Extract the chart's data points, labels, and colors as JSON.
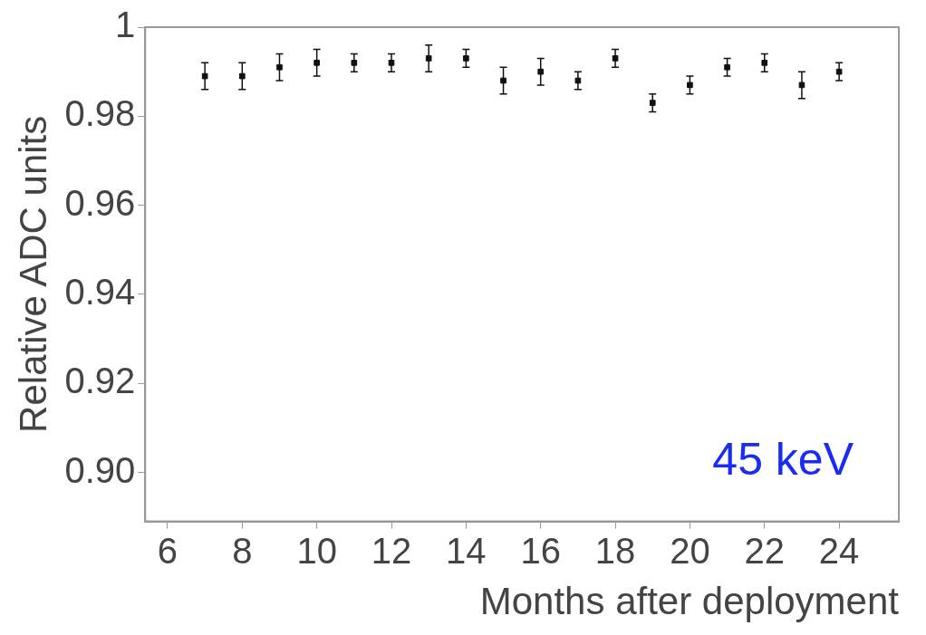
{
  "chart_data": {
    "type": "scatter",
    "xlabel": "Months after deployment",
    "ylabel": "Relative ADC units",
    "annotations": [
      "45 keV"
    ],
    "x": [
      7,
      8,
      9,
      10,
      11,
      12,
      13,
      14,
      15,
      16,
      17,
      18,
      19,
      20,
      21,
      22,
      23,
      24
    ],
    "values": [
      0.989,
      0.989,
      0.991,
      0.992,
      0.992,
      0.992,
      0.993,
      0.993,
      0.988,
      0.99,
      0.988,
      0.993,
      0.983,
      0.987,
      0.991,
      0.992,
      0.987,
      0.99
    ],
    "errors": [
      0.003,
      0.003,
      0.003,
      0.003,
      0.002,
      0.002,
      0.003,
      0.002,
      0.003,
      0.003,
      0.002,
      0.002,
      0.002,
      0.002,
      0.002,
      0.002,
      0.003,
      0.002
    ],
    "color": "#111111",
    "marker": "square",
    "grid": false,
    "legend": false,
    "xlim": [
      5.4,
      25.6
    ],
    "xticks": [
      6,
      8,
      10,
      12,
      14,
      16,
      18,
      20,
      22,
      24
    ],
    "ylim": [
      0.889,
      1
    ],
    "yticks": [
      {
        "value": 0.9,
        "label": "0.90"
      },
      {
        "value": 0.92,
        "label": "0.92"
      },
      {
        "value": 0.94,
        "label": "0.94"
      },
      {
        "value": 0.96,
        "label": "0.96"
      },
      {
        "value": 0.98,
        "label": "0.98"
      },
      {
        "value": 1,
        "label": "1"
      }
    ]
  }
}
